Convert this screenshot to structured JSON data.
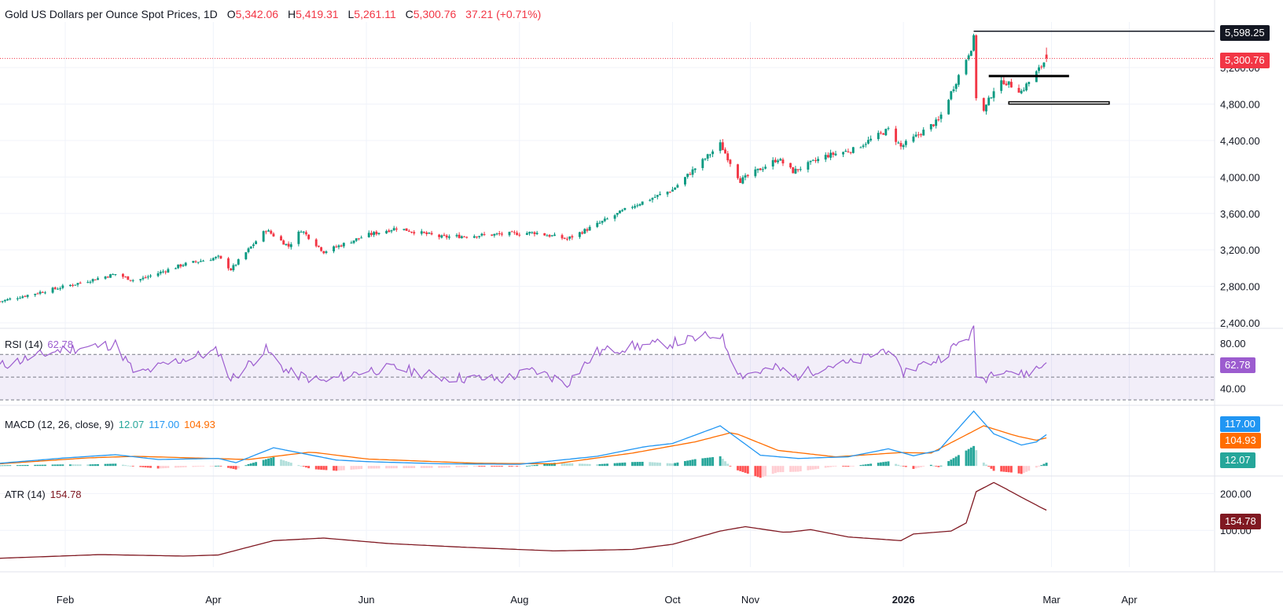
{
  "header": {
    "symbol": "Gold US Dollars per Ounce Spot Prices",
    "interval": "1D",
    "open_label": "O",
    "open": "5,342.06",
    "high_label": "H",
    "high": "5,419.31",
    "low_label": "L",
    "low": "5,261.11",
    "close_label": "C",
    "close": "5,300.76",
    "change": "37.21 (+0.71%)"
  },
  "colors": {
    "up": "#089981",
    "down": "#f23645",
    "grid": "#f0f3fa",
    "axis_text": "#131722",
    "rsi": "#9c5ccf",
    "rsi_band": "rgba(126,87,194,0.10)",
    "macd": "#2196f3",
    "signal": "#ff6d00",
    "atr": "#801922",
    "hist_up_strong": "#26a69a",
    "hist_up_weak": "#b2dfdb",
    "hist_down_strong": "#ff5252",
    "hist_down_weak": "#ffcdd2"
  },
  "chart_data": [
    {
      "type": "candlestick",
      "title": "Gold US Dollars per Ounce Spot Prices, 1D",
      "y_ticks": [
        2400,
        2800,
        3200,
        3600,
        4000,
        4400,
        4800,
        5200
      ],
      "y_tick_labels": [
        "2,400.00",
        "2,800.00",
        "3,200.00",
        "3,600.00",
        "4,000.00",
        "4,400.00",
        "4,800.00",
        "5,200.00"
      ],
      "ylim": [
        2340,
        5700
      ],
      "x_labels": [
        "Feb",
        "Apr",
        "Jun",
        "Aug",
        "Oct",
        "Nov",
        "2026",
        "Mar",
        "Apr"
      ],
      "x_label_dates": [
        "2025-02-01",
        "2025-04-01",
        "2025-06-01",
        "2025-08-01",
        "2025-10-01",
        "2025-11-01",
        "2026-01-01",
        "2026-03-01",
        "2026-04-01"
      ],
      "xlim": [
        "2025-01-06",
        "2026-05-05"
      ],
      "close_anchors": [
        [
          "2025-01-06",
          2635
        ],
        [
          "2025-02-01",
          2800
        ],
        [
          "2025-02-21",
          2935
        ],
        [
          "2025-03-01",
          2860
        ],
        [
          "2025-03-20",
          3040
        ],
        [
          "2025-04-03",
          3120
        ],
        [
          "2025-04-08",
          2985
        ],
        [
          "2025-04-22",
          3420
        ],
        [
          "2025-05-01",
          3240
        ],
        [
          "2025-05-06",
          3420
        ],
        [
          "2025-05-15",
          3180
        ],
        [
          "2025-06-01",
          3360
        ],
        [
          "2025-06-13",
          3440
        ],
        [
          "2025-07-01",
          3340
        ],
        [
          "2025-08-07",
          3390
        ],
        [
          "2025-08-20",
          3320
        ],
        [
          "2025-09-01",
          3480
        ],
        [
          "2025-09-15",
          3680
        ],
        [
          "2025-10-01",
          3860
        ],
        [
          "2025-10-20",
          4360
        ],
        [
          "2025-10-28",
          3960
        ],
        [
          "2025-11-12",
          4200
        ],
        [
          "2025-11-18",
          4060
        ],
        [
          "2025-12-01",
          4230
        ],
        [
          "2025-12-12",
          4300
        ],
        [
          "2025-12-26",
          4520
        ],
        [
          "2025-12-31",
          4330
        ],
        [
          "2026-01-15",
          4620
        ],
        [
          "2026-01-28",
          5420
        ],
        [
          "2026-01-29",
          5520
        ],
        [
          "2026-01-30",
          4880
        ],
        [
          "2026-02-02",
          4720
        ],
        [
          "2026-02-06",
          4960
        ],
        [
          "2026-02-10",
          5050
        ],
        [
          "2026-02-17",
          4940
        ],
        [
          "2026-02-24",
          5180
        ],
        [
          "2026-02-27",
          5300
        ]
      ],
      "last": {
        "open": 5342.06,
        "high": 5419.31,
        "low": 5261.11,
        "close": 5300.76
      },
      "annotations": [
        {
          "kind": "horizontal-ray",
          "price": 5598.25,
          "start": "2026-01-29",
          "label": "5,598.25"
        },
        {
          "kind": "last-price-line",
          "price": 5300.76,
          "label": "5,300.76"
        },
        {
          "kind": "zone",
          "from": "2026-02-04",
          "to": "2026-03-08",
          "price_top": 5120,
          "price_bottom": 5100,
          "style": "filled"
        },
        {
          "kind": "zone",
          "from": "2026-02-12",
          "to": "2026-03-24",
          "price_top": 4825,
          "price_bottom": 4800,
          "style": "outline"
        }
      ]
    },
    {
      "type": "line",
      "name": "RSI (14)",
      "value": "62.78",
      "value_num": 62.78,
      "y_tick_labels": [
        "80.00",
        "40.00"
      ],
      "y_ticks": [
        80,
        40
      ],
      "levels": [
        70,
        50,
        30
      ],
      "ylim": [
        28,
        93
      ],
      "anchors": [
        [
          "2025-01-06",
          60
        ],
        [
          "2025-01-30",
          74
        ],
        [
          "2025-02-21",
          79
        ],
        [
          "2025-03-01",
          52
        ],
        [
          "2025-03-20",
          66
        ],
        [
          "2025-04-03",
          73
        ],
        [
          "2025-04-08",
          48
        ],
        [
          "2025-04-22",
          74
        ],
        [
          "2025-05-01",
          54
        ],
        [
          "2025-05-15",
          46
        ],
        [
          "2025-06-01",
          56
        ],
        [
          "2025-06-13",
          58
        ],
        [
          "2025-07-01",
          50
        ],
        [
          "2025-07-25",
          48
        ],
        [
          "2025-08-07",
          56
        ],
        [
          "2025-08-20",
          45
        ],
        [
          "2025-09-01",
          72
        ],
        [
          "2025-09-15",
          77
        ],
        [
          "2025-10-01",
          80
        ],
        [
          "2025-10-20",
          88
        ],
        [
          "2025-10-28",
          52
        ],
        [
          "2025-11-12",
          58
        ],
        [
          "2025-11-18",
          50
        ],
        [
          "2025-12-01",
          60
        ],
        [
          "2025-12-12",
          62
        ],
        [
          "2025-12-26",
          76
        ],
        [
          "2025-12-31",
          54
        ],
        [
          "2026-01-15",
          66
        ],
        [
          "2026-01-28",
          88
        ],
        [
          "2026-01-29",
          91
        ],
        [
          "2026-01-30",
          52
        ],
        [
          "2026-02-02",
          48
        ],
        [
          "2026-02-06",
          56
        ],
        [
          "2026-02-10",
          58
        ],
        [
          "2026-02-17",
          52
        ],
        [
          "2026-02-24",
          58
        ],
        [
          "2026-02-27",
          62.78
        ]
      ]
    },
    {
      "type": "line+bar",
      "name": "MACD (12, 26, close, 9)",
      "histogram_value": "12.07",
      "macd_value": "117.00",
      "signal_value": "104.93",
      "series": [
        {
          "name": "MACD",
          "value": 117.0
        },
        {
          "name": "Signal",
          "value": 104.93
        },
        {
          "name": "Histogram",
          "value": 12.07
        }
      ],
      "ylim": [
        -20,
        215
      ],
      "macd_anchors": [
        [
          "2025-01-06",
          10
        ],
        [
          "2025-02-01",
          30
        ],
        [
          "2025-02-21",
          42
        ],
        [
          "2025-03-10",
          24
        ],
        [
          "2025-04-03",
          28
        ],
        [
          "2025-04-10",
          12
        ],
        [
          "2025-04-25",
          68
        ],
        [
          "2025-05-20",
          22
        ],
        [
          "2025-06-01",
          16
        ],
        [
          "2025-07-01",
          8
        ],
        [
          "2025-08-01",
          6
        ],
        [
          "2025-09-01",
          36
        ],
        [
          "2025-09-20",
          72
        ],
        [
          "2025-10-01",
          84
        ],
        [
          "2025-10-20",
          150
        ],
        [
          "2025-11-05",
          40
        ],
        [
          "2025-11-20",
          28
        ],
        [
          "2025-12-10",
          34
        ],
        [
          "2025-12-26",
          64
        ],
        [
          "2026-01-05",
          38
        ],
        [
          "2026-01-15",
          58
        ],
        [
          "2026-01-29",
          205
        ],
        [
          "2026-02-06",
          120
        ],
        [
          "2026-02-17",
          78
        ],
        [
          "2026-02-23",
          90
        ],
        [
          "2026-02-27",
          117
        ]
      ],
      "signal_anchors": [
        [
          "2025-01-06",
          8
        ],
        [
          "2025-02-10",
          30
        ],
        [
          "2025-03-01",
          36
        ],
        [
          "2025-04-15",
          24
        ],
        [
          "2025-05-10",
          52
        ],
        [
          "2025-06-01",
          26
        ],
        [
          "2025-07-15",
          10
        ],
        [
          "2025-08-15",
          8
        ],
        [
          "2025-09-15",
          48
        ],
        [
          "2025-10-10",
          90
        ],
        [
          "2025-10-25",
          126
        ],
        [
          "2025-11-12",
          58
        ],
        [
          "2025-12-05",
          34
        ],
        [
          "2025-12-31",
          50
        ],
        [
          "2026-01-12",
          48
        ],
        [
          "2026-02-02",
          150
        ],
        [
          "2026-02-15",
          112
        ],
        [
          "2026-02-23",
          96
        ],
        [
          "2026-02-27",
          104.93
        ]
      ]
    },
    {
      "type": "line",
      "name": "ATR (14)",
      "value": "154.78",
      "value_num": 154.78,
      "y_ticks": [
        200,
        100
      ],
      "y_tick_labels": [
        "200.00",
        "100.00"
      ],
      "ylim": [
        0,
        235
      ],
      "anchors": [
        [
          "2025-01-06",
          24
        ],
        [
          "2025-02-15",
          34
        ],
        [
          "2025-03-20",
          30
        ],
        [
          "2025-04-03",
          33
        ],
        [
          "2025-04-25",
          72
        ],
        [
          "2025-05-15",
          79
        ],
        [
          "2025-06-10",
          64
        ],
        [
          "2025-07-10",
          54
        ],
        [
          "2025-08-15",
          44
        ],
        [
          "2025-09-15",
          48
        ],
        [
          "2025-10-01",
          62
        ],
        [
          "2025-10-20",
          98
        ],
        [
          "2025-10-30",
          110
        ],
        [
          "2025-11-15",
          94
        ],
        [
          "2025-11-25",
          102
        ],
        [
          "2025-12-10",
          82
        ],
        [
          "2025-12-31",
          72
        ],
        [
          "2026-01-05",
          90
        ],
        [
          "2026-01-20",
          98
        ],
        [
          "2026-01-26",
          120
        ],
        [
          "2026-01-30",
          205
        ],
        [
          "2026-02-06",
          230
        ],
        [
          "2026-02-10",
          216
        ],
        [
          "2026-02-17",
          190
        ],
        [
          "2026-02-24",
          165
        ],
        [
          "2026-02-27",
          154.78
        ]
      ]
    }
  ]
}
